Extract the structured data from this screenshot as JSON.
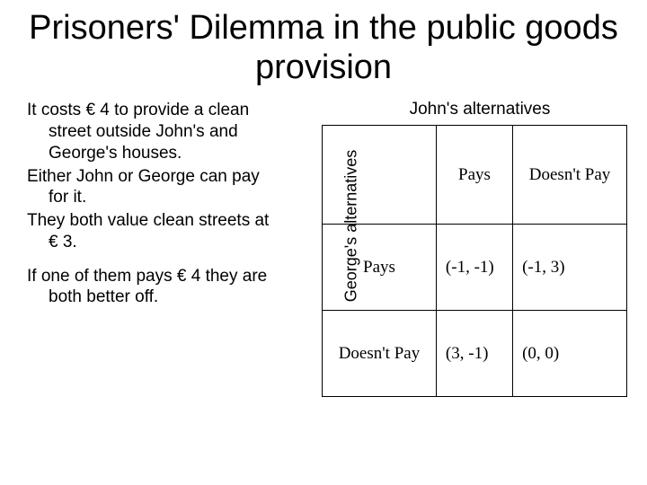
{
  "title": "Prisoners' Dilemma in the public goods provision",
  "left": {
    "p1": "It costs € 4 to provide a clean street outside John's and George's houses.",
    "p2": "Either John or George can pay for it.",
    "p3": "They both value clean streets at € 3.",
    "p4": "If one of them pays € 4 they are both better off."
  },
  "table": {
    "john_label": "John's alternatives",
    "george_label": "George's alternatives",
    "col1": "Pays",
    "col2": "Doesn't Pay",
    "row1": "Pays",
    "row2": "Doesn't Pay",
    "c11": "(-1, -1)",
    "c12": "(-1, 3)",
    "c21": "(3, -1)",
    "c22": "(0, 0)"
  },
  "style": {
    "background": "#ffffff",
    "text_color": "#000000",
    "border_color": "#000000",
    "title_fontsize": 38,
    "body_fontsize": 19,
    "table_fontsize": 19,
    "table_font": "Times New Roman",
    "body_font": "Arial"
  }
}
